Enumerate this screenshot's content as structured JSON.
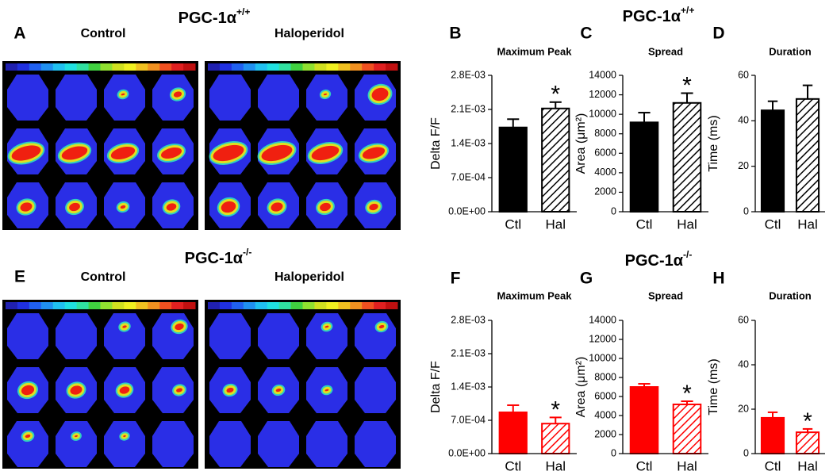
{
  "figure": {
    "rows": [
      {
        "title": "PGC-1α",
        "title_sup": "+/+",
        "panel_label": "A",
        "conditions": [
          "Control",
          "Haloperidol"
        ]
      },
      {
        "title": "PGC-1α",
        "title_sup": "-/-",
        "panel_label": "E",
        "conditions": [
          "Control",
          "Haloperidol"
        ]
      }
    ]
  },
  "chart_data": [
    {
      "type": "bar",
      "panel_label": "B",
      "title": "Maximum Peak",
      "ylabel": "Delta F/F",
      "categories": [
        "Ctl",
        "Hal"
      ],
      "values": [
        0.00173,
        0.00212
      ],
      "errors": [
        0.00017,
        0.00013
      ],
      "colors": [
        "#000000",
        "#000000"
      ],
      "bar_styles": [
        "solid",
        "hatched"
      ],
      "value_annotations": [
        null,
        "*"
      ],
      "ylim": [
        0,
        0.0028
      ],
      "yticks": [
        {
          "value": 0,
          "label": "0.0E+00"
        },
        {
          "value": 0.0007,
          "label": "7.0E-04"
        },
        {
          "value": 0.0014,
          "label": "1.4E-03"
        },
        {
          "value": 0.0021,
          "label": "2.1E-03"
        },
        {
          "value": 0.0028,
          "label": "2.8E-03"
        }
      ]
    },
    {
      "type": "bar",
      "panel_label": "C",
      "title": "Spread",
      "ylabel": "Area (μm²)",
      "categories": [
        "Ctl",
        "Hal"
      ],
      "values": [
        9170,
        11170
      ],
      "errors": [
        1000,
        1000
      ],
      "colors": [
        "#000000",
        "#000000"
      ],
      "bar_styles": [
        "solid",
        "hatched"
      ],
      "value_annotations": [
        null,
        "*"
      ],
      "ylim": [
        0,
        14000
      ],
      "yticks": [
        0,
        2000,
        4000,
        6000,
        8000,
        10000,
        12000,
        14000
      ]
    },
    {
      "type": "bar",
      "panel_label": "D",
      "title": "Duration",
      "ylabel": "Time (ms)",
      "categories": [
        "Ctl",
        "Hal"
      ],
      "values": [
        44.6,
        49.6
      ],
      "errors": [
        4,
        6
      ],
      "colors": [
        "#000000",
        "#000000"
      ],
      "bar_styles": [
        "solid",
        "hatched"
      ],
      "value_annotations": [
        null,
        null
      ],
      "ylim": [
        0,
        60
      ],
      "yticks": [
        0,
        20,
        40,
        60
      ]
    },
    {
      "type": "bar",
      "panel_label": "F",
      "title": "Maximum Peak",
      "ylabel": "Delta F/F",
      "categories": [
        "Ctl",
        "Hal"
      ],
      "values": [
        0.000867,
        0.00063
      ],
      "errors": [
        0.00015,
        0.00013
      ],
      "colors": [
        "#ff0000",
        "#ff0000"
      ],
      "bar_styles": [
        "solid",
        "hatched"
      ],
      "value_annotations": [
        null,
        "*"
      ],
      "ylim": [
        0,
        0.0028
      ],
      "yticks": [
        {
          "value": 0,
          "label": "0.0E+00"
        },
        {
          "value": 0.0007,
          "label": "7.0E-04"
        },
        {
          "value": 0.0014,
          "label": "1.4E-03"
        },
        {
          "value": 0.0021,
          "label": "2.1E-03"
        },
        {
          "value": 0.0028,
          "label": "2.8E-03"
        }
      ]
    },
    {
      "type": "bar",
      "panel_label": "G",
      "title": "Spread",
      "ylabel": "Area (μm²)",
      "categories": [
        "Ctl",
        "Hal"
      ],
      "values": [
        7000,
        5170
      ],
      "errors": [
        330,
        330
      ],
      "colors": [
        "#ff0000",
        "#ff0000"
      ],
      "bar_styles": [
        "solid",
        "hatched"
      ],
      "value_annotations": [
        null,
        "*"
      ],
      "ylim": [
        0,
        14000
      ],
      "yticks": [
        0,
        2000,
        4000,
        6000,
        8000,
        10000,
        12000,
        14000
      ]
    },
    {
      "type": "bar",
      "panel_label": "H",
      "title": "Duration",
      "ylabel": "Time (ms)",
      "categories": [
        "Ctl",
        "Hal"
      ],
      "values": [
        16.1,
        9.6
      ],
      "errors": [
        2.5,
        1.5
      ],
      "colors": [
        "#ff0000",
        "#ff0000"
      ],
      "bar_styles": [
        "solid",
        "hatched"
      ],
      "value_annotations": [
        null,
        "*"
      ],
      "ylim": [
        0,
        60
      ],
      "yticks": [
        0,
        20,
        40,
        60
      ]
    }
  ]
}
